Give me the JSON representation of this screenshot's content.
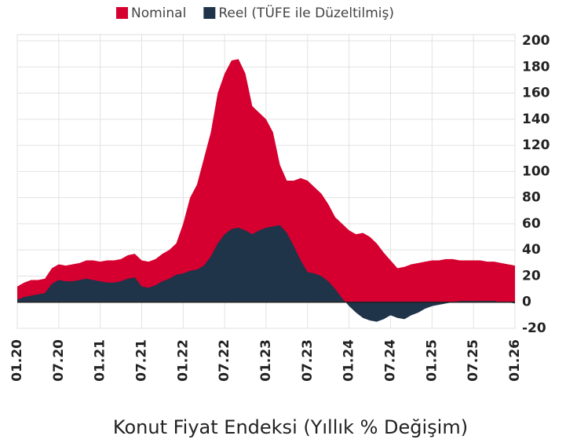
{
  "chart_data": {
    "type": "area",
    "title": "Konut Fiyat Endeksi (Yıllık % Değişim)",
    "categories": [
      "01.20",
      null,
      null,
      null,
      null,
      null,
      "07.20",
      null,
      null,
      null,
      null,
      null,
      "01.21",
      null,
      null,
      null,
      null,
      null,
      "07.21",
      null,
      null,
      null,
      null,
      null,
      "01.22",
      null,
      null,
      null,
      null,
      null,
      "07.22",
      null,
      null,
      null,
      null,
      null,
      "01.23",
      null,
      null,
      null,
      null,
      null,
      "07.23",
      null,
      null,
      null,
      null,
      null,
      "01.24",
      null,
      null,
      null,
      null,
      null,
      "07.24",
      null,
      null,
      null,
      null,
      null,
      "01.25",
      null,
      null,
      null,
      null,
      null,
      "07.25",
      null,
      null,
      null,
      null,
      null,
      "01.26"
    ],
    "series": [
      {
        "name": "Nominal",
        "color": "#d5002f",
        "values": [
          12,
          15,
          17,
          17,
          18,
          26,
          29,
          28,
          29,
          30,
          32,
          32,
          31,
          32,
          32,
          33,
          36,
          37,
          32,
          31,
          33,
          37,
          40,
          45,
          60,
          80,
          90,
          110,
          130,
          160,
          175,
          185,
          186,
          175,
          150,
          145,
          140,
          130,
          105,
          93,
          93,
          95,
          93,
          88,
          83,
          75,
          65,
          60,
          55,
          52,
          53,
          50,
          45,
          38,
          32,
          26,
          27,
          29,
          30,
          31,
          32,
          32,
          33,
          33,
          32,
          32,
          32,
          32,
          31,
          31,
          30,
          29,
          28
        ]
      },
      {
        "name": "Reel (TÜFE ile Düzeltilmiş)",
        "color": "#1f3349",
        "values": [
          2,
          4,
          5,
          6,
          7,
          14,
          17,
          16,
          16,
          17,
          18,
          17,
          16,
          15,
          15,
          16,
          18,
          19,
          12,
          11,
          13,
          16,
          18,
          21,
          22,
          24,
          25,
          28,
          35,
          45,
          52,
          56,
          57,
          55,
          52,
          55,
          57,
          58,
          59,
          53,
          43,
          32,
          23,
          22,
          20,
          16,
          10,
          3,
          -3,
          -8,
          -12,
          -14,
          -15,
          -13,
          -10,
          -12,
          -13,
          -10,
          -8,
          -5,
          -3,
          -2,
          -1,
          0,
          1,
          1,
          1,
          1,
          1,
          1,
          0,
          0,
          -1
        ]
      }
    ],
    "ylim": [
      -20,
      200
    ],
    "yticks": [
      -20,
      0,
      20,
      40,
      60,
      80,
      100,
      120,
      140,
      160,
      180,
      200
    ],
    "grid": true,
    "legend": "top"
  }
}
